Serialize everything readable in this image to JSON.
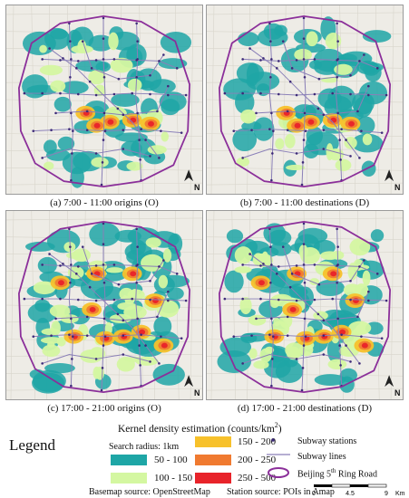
{
  "panels": [
    {
      "caption": "(a) 7:00 - 11:00  origins (O)",
      "intensity": 1
    },
    {
      "caption": "(b) 7:00 - 11:00  destinations (D)",
      "intensity": 1
    },
    {
      "caption": "(c) 17:00 - 21:00  origins (O)",
      "intensity": 2
    },
    {
      "caption": "(d) 17:00 - 21:00  destinations (D)",
      "intensity": 2
    }
  ],
  "north_label": "N",
  "legend": {
    "title": "Legend",
    "kde_title": "Kernel density estimation (counts/km",
    "kde_sup": "2",
    "kde_close": ")",
    "search_radius": "Search radius: 1km",
    "classes": [
      {
        "label": "50 - 100",
        "color": "#1ea6a6"
      },
      {
        "label": "100 - 150",
        "color": "#d4f7a1"
      },
      {
        "label": "150 - 200",
        "color": "#f7c12b"
      },
      {
        "label": "200 - 250",
        "color": "#f07a30"
      },
      {
        "label": "250 - 500",
        "color": "#e8232a"
      }
    ],
    "subway_stations": "Subway stations",
    "subway_lines": "Subway lines",
    "ring_road_prefix": "Beijing 5",
    "ring_road_sup": "th",
    "ring_road_suffix": " Ring Road",
    "basemap_source": "Basemap source: OpenStreetMap",
    "station_source": "Station source: POIs in Amap",
    "scale_ticks": [
      "0",
      "4.5",
      "9"
    ],
    "scale_unit": "Km"
  },
  "colors": {
    "ring_road": "#8b2f9a",
    "subway_line": "#8a7fb8",
    "station": "#3d2a78",
    "basemap": "#eeece6"
  }
}
